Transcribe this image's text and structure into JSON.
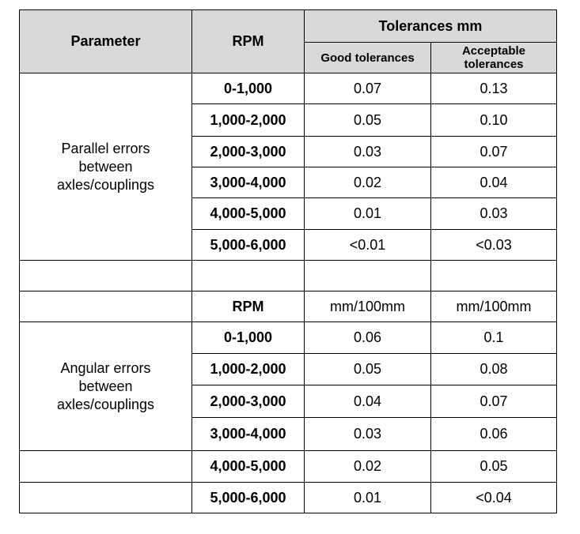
{
  "header": {
    "parameter": "Parameter",
    "rpm": "RPM",
    "tolerances": "Tolerances  mm",
    "good": "Good tolerances",
    "acceptable_line1": "Acceptable",
    "acceptable_line2": "tolerances"
  },
  "parallel": {
    "label_lines": [
      "Parallel errors",
      "between",
      "axles/couplings"
    ],
    "rows": [
      {
        "rpm": "0-1,000",
        "good": "0.07",
        "acceptable": "0.13"
      },
      {
        "rpm": "1,000-2,000",
        "good": "0.05",
        "acceptable": "0.10"
      },
      {
        "rpm": "2,000-3,000",
        "good": "0.03",
        "acceptable": "0.07"
      },
      {
        "rpm": "3,000-4,000",
        "good": "0.02",
        "acceptable": "0.04"
      },
      {
        "rpm": "4,000-5,000",
        "good": "0.01",
        "acceptable": "0.03"
      },
      {
        "rpm": "5,000-6,000",
        "good": "<0.01",
        "acceptable": "<0.03"
      }
    ]
  },
  "angular_header": {
    "rpm": "RPM",
    "good_unit": "mm/100mm",
    "acceptable_unit": "mm/100mm"
  },
  "angular": {
    "label_lines": [
      "Angular errors",
      "between",
      "axles/couplings"
    ],
    "rows": [
      {
        "rpm": "0-1,000",
        "good": "0.06",
        "acceptable": "0.1"
      },
      {
        "rpm": "1,000-2,000",
        "good": "0.05",
        "acceptable": "0.08"
      },
      {
        "rpm": "2,000-3,000",
        "good": "0.04",
        "acceptable": "0.07"
      },
      {
        "rpm": "3,000-4,000",
        "good": "0.03",
        "acceptable": "0.06"
      },
      {
        "rpm": "4,000-5,000",
        "good": "0.02",
        "acceptable": "0.05"
      },
      {
        "rpm": "5,000-6,000",
        "good": "0.01",
        "acceptable": "<0.04"
      }
    ]
  }
}
